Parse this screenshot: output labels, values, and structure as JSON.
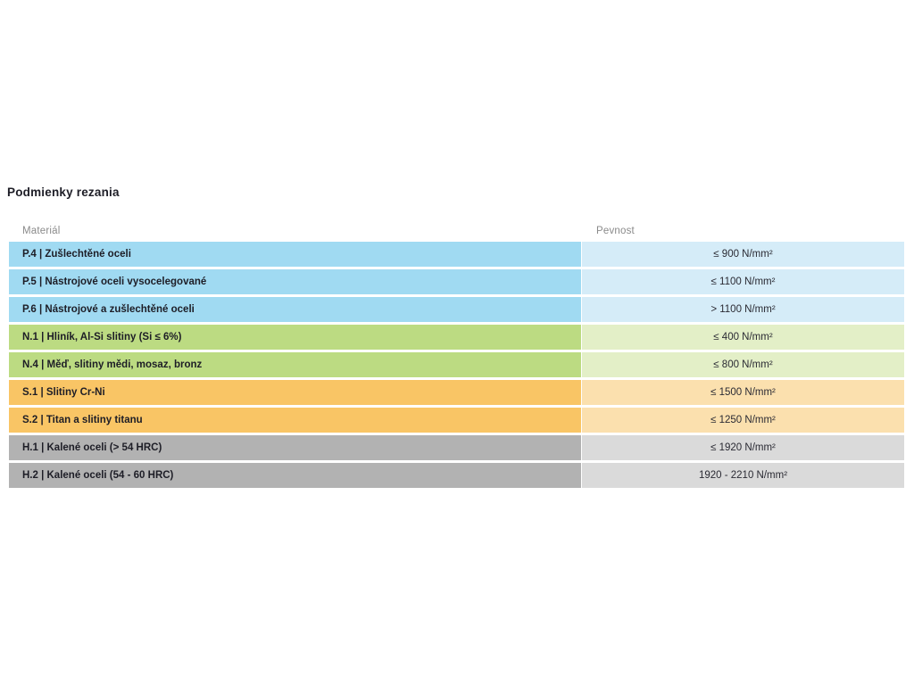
{
  "page": {
    "title": "Podmienky rezania"
  },
  "table": {
    "headers": {
      "material": "Materiál",
      "strength": "Pevnost"
    },
    "rows": [
      {
        "group": "P",
        "material": "P.4 | Zušlechtěné oceli",
        "strength": "≤ 900 N/mm²"
      },
      {
        "group": "P",
        "material": "P.5 | Nástrojové oceli vysocelegované",
        "strength": "≤ 1100 N/mm²"
      },
      {
        "group": "P",
        "material": "P.6 | Nástrojové a zušlechtěné oceli",
        "strength": "> 1100 N/mm²"
      },
      {
        "group": "N",
        "material": "N.1 | Hliník, Al-Si slitiny (Si ≤ 6%)",
        "strength": "≤ 400 N/mm²"
      },
      {
        "group": "N",
        "material": "N.4 | Měď, slitiny mědi, mosaz, bronz",
        "strength": "≤ 800 N/mm²"
      },
      {
        "group": "S",
        "material": "S.1 | Slitiny Cr-Ni",
        "strength": "≤ 1500 N/mm²"
      },
      {
        "group": "S",
        "material": "S.2 | Titan a slitiny titanu",
        "strength": "≤ 1250 N/mm²"
      },
      {
        "group": "H",
        "material": "H.1 | Kalené oceli (> 54 HRC)",
        "strength": "≤ 1920 N/mm²"
      },
      {
        "group": "H",
        "material": "H.2 | Kalené oceli (54 - 60 HRC)",
        "strength": "1920 - 2210 N/mm²"
      }
    ],
    "group_colors": {
      "P": {
        "dark": "#a0daf2",
        "light": "#d5ecf8"
      },
      "N": {
        "dark": "#bcdb82",
        "light": "#e3efc7"
      },
      "S": {
        "dark": "#f9c565",
        "light": "#fbe0ae"
      },
      "H": {
        "dark": "#b2b2b2",
        "light": "#dadada"
      }
    }
  }
}
